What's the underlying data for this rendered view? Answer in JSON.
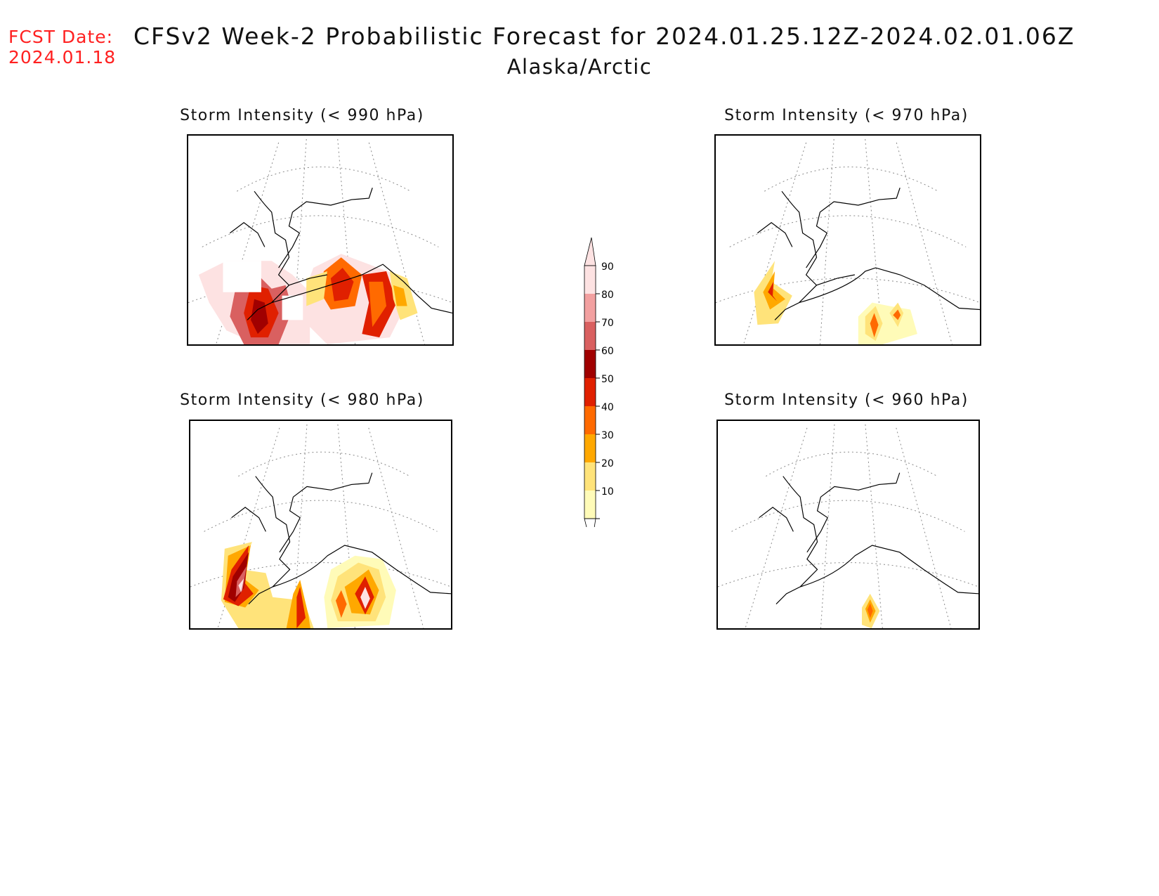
{
  "header": {
    "fcst_label": "FCST Date:",
    "fcst_date": "2024.01.18",
    "title": "CFSv2 Week-2 Probabilistic Forecast for 2024.01.25.12Z-2024.02.01.06Z",
    "region": "Alaska/Arctic"
  },
  "panels": [
    {
      "id": "p990",
      "title": "Storm Intensity (< 990 hPa)"
    },
    {
      "id": "p970",
      "title": "Storm Intensity (< 970 hPa)"
    },
    {
      "id": "p980",
      "title": "Storm Intensity (< 980 hPa)"
    },
    {
      "id": "p960",
      "title": "Storm Intensity (< 960 hPa)"
    }
  ],
  "legend": {
    "labels": [
      "90",
      "80",
      "70",
      "60",
      "50",
      "40",
      "30",
      "20",
      "10"
    ],
    "colors": {
      "10": "#fffbb8",
      "20": "#ffe37a",
      "30": "#ffa800",
      "40": "#ff6a00",
      "50": "#e02000",
      "60": "#a00000",
      "70": "#d96060",
      "80": "#f2a0a0",
      "90": "#fde2e2"
    }
  }
}
